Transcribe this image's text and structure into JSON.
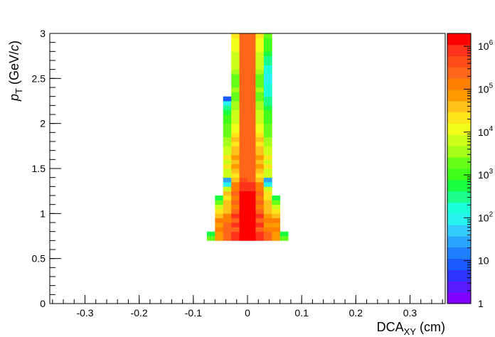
{
  "chart_data": {
    "type": "heatmap",
    "title": "",
    "xlabel": {
      "main": "DCA",
      "sub": "XY",
      "tail": " (cm)"
    },
    "ylabel": {
      "main": "p",
      "sub": "T",
      "tail1": " (GeV/",
      "italic": "c",
      "tail2": ")"
    },
    "xlim": [
      -0.365,
      0.365
    ],
    "ylim": [
      0,
      3
    ],
    "x_ticks": [
      -0.3,
      -0.2,
      -0.1,
      0,
      0.1,
      0.2,
      0.3
    ],
    "x_tick_labels": [
      "-0.3",
      "-0.2",
      "-0.1",
      "0",
      "0.1",
      "0.2",
      "0.3"
    ],
    "y_ticks": [
      0,
      0.5,
      1,
      1.5,
      2,
      2.5,
      3
    ],
    "y_tick_labels": [
      "0",
      "0.5",
      "1",
      "1.5",
      "2",
      "2.5",
      "3"
    ],
    "grid": false,
    "colorbar": {
      "scale": "log",
      "range": [
        1,
        2000000
      ],
      "tick_values": [
        1,
        10,
        100,
        1000,
        10000,
        100000,
        1000000
      ],
      "tick_labels": [
        {
          "base": "1",
          "exp": ""
        },
        {
          "base": "10",
          "exp": ""
        },
        {
          "base": "10",
          "exp": "2"
        },
        {
          "base": "10",
          "exp": "3"
        },
        {
          "base": "10",
          "exp": "4"
        },
        {
          "base": "10",
          "exp": "5"
        },
        {
          "base": "10",
          "exp": "6"
        }
      ],
      "palette": [
        "#7f00ff",
        "#5a1aff",
        "#2e34ff",
        "#1a5aff",
        "#1e7fff",
        "#2aa5ff",
        "#33ccff",
        "#26f2f2",
        "#1affd9",
        "#1aff8c",
        "#1aff40",
        "#40ff1a",
        "#66ff1a",
        "#a6ff1a",
        "#ccff1a",
        "#f2ff1a",
        "#ffe61a",
        "#ffc01a",
        "#ff9900",
        "#ff7f00",
        "#ff661a",
        "#ff4d1a",
        "#ff3319",
        "#ff0000"
      ]
    },
    "cells": {
      "x_edges": [
        -0.075,
        -0.06,
        -0.045,
        -0.03,
        -0.015,
        0,
        0.015,
        0.03,
        0.045,
        0.06,
        0.075
      ],
      "y_step": 0.05,
      "columns": [
        {
          "y0": 0.7,
          "vals": [
            2000,
            600
          ]
        },
        {
          "y0": 0.7,
          "vals": [
            80000,
            80000,
            120000,
            60000,
            100000,
            40000,
            20000,
            8000,
            2000,
            600
          ]
        },
        {
          "y0": 0.7,
          "vals": [
            200000,
            200000,
            200000,
            300000,
            100000,
            120000,
            30000,
            30000,
            50000,
            20000,
            30000,
            6000,
            100,
            30,
            8000,
            8000,
            20000,
            8000,
            20000,
            6000,
            8000,
            4000,
            4000,
            2000,
            1500,
            1500,
            1000,
            800,
            600,
            400,
            100,
            10
          ]
        },
        {
          "y0": 0.7,
          "vals": [
            800000,
            800000,
            300000,
            800000,
            300000,
            600000,
            200000,
            100000,
            300000,
            150000,
            200000,
            150000,
            120000,
            50000,
            20000,
            50000,
            60000,
            50000,
            60000,
            50000,
            30000,
            20000,
            40000,
            20000,
            15000,
            10000,
            8000,
            8000,
            5000,
            4000,
            3000,
            2000,
            2000,
            3000,
            2000,
            2000,
            2000,
            3000,
            5000,
            5000,
            8000,
            8000,
            10000,
            10000,
            15000,
            20000,
            20000
          ]
        },
        {
          "y0": 0.7,
          "vals": [
            1500000,
            1500000,
            1500000,
            1500000,
            1500000,
            1500000,
            1500000,
            1500000,
            1500000,
            1500000,
            1500000,
            1000000,
            800000,
            400000,
            300000,
            300000,
            300000,
            300000,
            200000,
            200000,
            200000,
            200000,
            200000,
            200000,
            200000,
            200000,
            200000,
            200000,
            200000,
            200000,
            200000,
            200000,
            200000,
            200000,
            200000,
            200000,
            200000,
            200000,
            200000,
            200000,
            200000,
            200000,
            200000,
            200000,
            200000,
            200000,
            200000
          ]
        },
        {
          "y0": 0.7,
          "vals": [
            1500000,
            1500000,
            1500000,
            1500000,
            1500000,
            1500000,
            1500000,
            1500000,
            1500000,
            1500000,
            1500000,
            800000,
            800000,
            300000,
            300000,
            300000,
            300000,
            300000,
            300000,
            300000,
            300000,
            300000,
            300000,
            300000,
            300000,
            300000,
            300000,
            300000,
            300000,
            300000,
            300000,
            300000,
            300000,
            200000,
            200000,
            200000,
            200000,
            200000,
            200000,
            200000,
            200000,
            200000,
            200000,
            200000,
            200000,
            200000,
            200000
          ]
        },
        {
          "y0": 0.7,
          "vals": [
            800000,
            800000,
            300000,
            800000,
            300000,
            600000,
            200000,
            150000,
            300000,
            150000,
            200000,
            150000,
            120000,
            50000,
            20000,
            50000,
            60000,
            50000,
            60000,
            50000,
            30000,
            20000,
            40000,
            20000,
            15000,
            10000,
            8000,
            8000,
            5000,
            4000,
            3000,
            2000,
            2000,
            3000,
            2000,
            2000,
            2000,
            3000,
            5000,
            5000,
            8000,
            8000,
            10000,
            10000,
            15000,
            20000,
            20000
          ]
        },
        {
          "y0": 0.7,
          "vals": [
            200000,
            200000,
            120000,
            80000,
            100000,
            80000,
            30000,
            40000,
            50000,
            20000,
            20000,
            6000,
            80,
            30,
            8000,
            8000,
            20000,
            8000,
            20000,
            6000,
            8000,
            4000,
            3000,
            2000,
            1500,
            1500,
            1000,
            800,
            800,
            600,
            400,
            300,
            200,
            150,
            150,
            100,
            100,
            150,
            200,
            300,
            400,
            600,
            800,
            800,
            1000,
            1500,
            150
          ]
        },
        {
          "y0": 0.7,
          "vals": [
            80000,
            80000,
            120000,
            60000,
            100000,
            40000,
            20000,
            8000,
            2000,
            600
          ]
        },
        {
          "y0": 0.7,
          "vals": [
            2000,
            600
          ]
        }
      ]
    }
  }
}
